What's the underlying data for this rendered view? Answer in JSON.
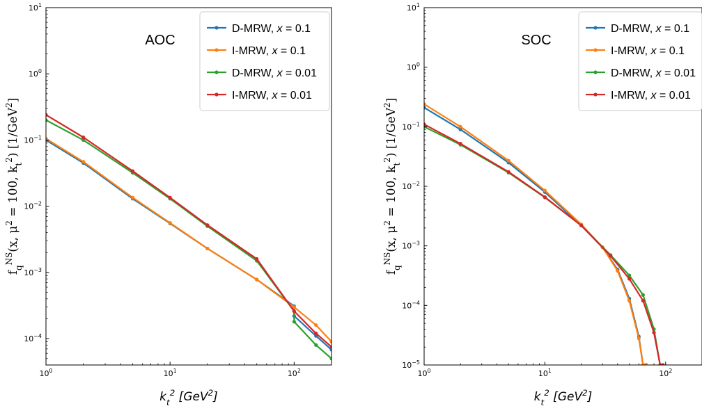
{
  "chart_data": [
    {
      "type": "line",
      "annotation": "AOC",
      "xlabel": "k_t^2 [GeV^2]",
      "ylabel": "f_q^{NS}(x, μ^2 = 100, k_t^2) [1/GeV^2]",
      "xscale": "log",
      "yscale": "log",
      "xlim": [
        1,
        200
      ],
      "ylim": [
        4e-05,
        10
      ],
      "legend_position": "top-right",
      "x_ticks": [
        1,
        10,
        100
      ],
      "x_tick_labels": [
        "10^0",
        "10^1",
        "10^2"
      ],
      "y_ticks": [
        0.0001,
        0.001,
        0.01,
        0.1,
        1,
        10
      ],
      "y_tick_labels": [
        "10^-4",
        "10^-3",
        "10^-2",
        "10^-1",
        "10^0",
        "10^1"
      ],
      "series": [
        {
          "name": "D-MRW, x = 0.1",
          "color": "#1f77b4",
          "x": [
            1,
            2,
            5,
            10,
            20,
            50,
            99.9,
            100,
            150,
            200
          ],
          "y": [
            0.1,
            0.045,
            0.013,
            0.0055,
            0.0023,
            0.00078,
            0.00031,
            0.00022,
            0.00011,
            6.8e-05
          ]
        },
        {
          "name": "I-MRW, x = 0.1",
          "color": "#ff7f0e",
          "x": [
            1,
            2,
            5,
            10,
            20,
            50,
            100,
            150,
            200
          ],
          "y": [
            0.105,
            0.047,
            0.0135,
            0.0056,
            0.0023,
            0.00078,
            0.0003,
            0.00016,
            9e-05
          ]
        },
        {
          "name": "D-MRW, x = 0.01",
          "color": "#2ca02c",
          "x": [
            1,
            2,
            5,
            10,
            20,
            50,
            99.9,
            100,
            150,
            200
          ],
          "y": [
            0.2,
            0.1,
            0.032,
            0.013,
            0.005,
            0.0015,
            0.00026,
            0.00018,
            8e-05,
            5e-05
          ]
        },
        {
          "name": "I-MRW, x = 0.01",
          "color": "#d62728",
          "x": [
            1,
            2,
            5,
            10,
            20,
            50,
            100,
            150,
            200
          ],
          "y": [
            0.24,
            0.11,
            0.034,
            0.0135,
            0.0052,
            0.0016,
            0.00026,
            0.00012,
            7.5e-05
          ]
        }
      ]
    },
    {
      "type": "line",
      "annotation": "SOC",
      "xlabel": "k_t^2 [GeV^2]",
      "ylabel": "f_q^{NS}(x, μ^2 = 100, k_t^2) [1/GeV^2]",
      "xscale": "log",
      "yscale": "log",
      "xlim": [
        1,
        200
      ],
      "ylim": [
        1e-05,
        10
      ],
      "legend_position": "top-right",
      "x_ticks": [
        1,
        10,
        100
      ],
      "x_tick_labels": [
        "10^0",
        "10^1",
        "10^2"
      ],
      "y_ticks": [
        1e-05,
        0.0001,
        0.001,
        0.01,
        0.1,
        1,
        10
      ],
      "y_tick_labels": [
        "10^-5",
        "10^-4",
        "10^-3",
        "10^-2",
        "10^-1",
        "10^0",
        "10^1"
      ],
      "series": [
        {
          "name": "D-MRW, x = 0.1",
          "color": "#1f77b4",
          "x": [
            1,
            2,
            5,
            10,
            20,
            30,
            40,
            50,
            60,
            65,
            68
          ],
          "y": [
            0.21,
            0.09,
            0.025,
            0.008,
            0.0022,
            0.00095,
            0.0004,
            0.00013,
            3e-05,
            1e-05,
            1e-05
          ]
        },
        {
          "name": "I-MRW, x = 0.1",
          "color": "#ff7f0e",
          "x": [
            1,
            2,
            5,
            10,
            20,
            30,
            40,
            50,
            60,
            65,
            68
          ],
          "y": [
            0.24,
            0.1,
            0.027,
            0.0085,
            0.0023,
            0.00095,
            0.00038,
            0.00012,
            2.8e-05,
            1e-05,
            1e-05
          ]
        },
        {
          "name": "D-MRW, x = 0.01",
          "color": "#2ca02c",
          "x": [
            1,
            2,
            5,
            10,
            20,
            35,
            50,
            65,
            80,
            90,
            95
          ],
          "y": [
            0.1,
            0.05,
            0.017,
            0.0065,
            0.0022,
            0.0007,
            0.00032,
            0.00015,
            4e-05,
            1e-05,
            1e-05
          ]
        },
        {
          "name": "I-MRW, x = 0.01",
          "color": "#d62728",
          "x": [
            1,
            2,
            5,
            10,
            20,
            35,
            50,
            65,
            80,
            90,
            95
          ],
          "y": [
            0.11,
            0.052,
            0.0175,
            0.0066,
            0.0022,
            0.00068,
            0.00028,
            0.00012,
            3.5e-05,
            1e-05,
            1e-05
          ]
        }
      ]
    }
  ]
}
